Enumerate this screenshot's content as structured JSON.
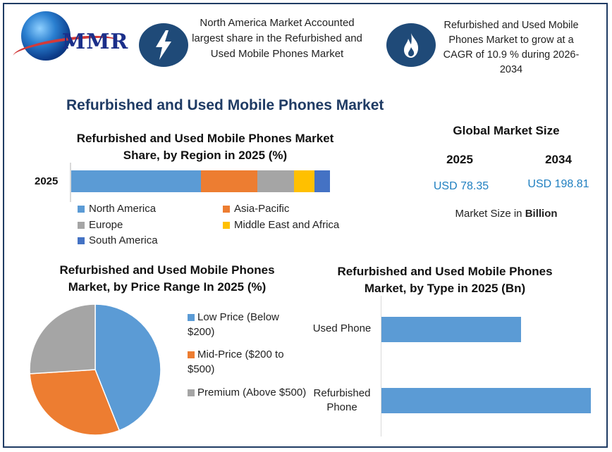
{
  "logo": {
    "text": "MMR"
  },
  "header": {
    "box1_text": "North America Market Accounted largest share in the Refurbished and Used Mobile Phones Market",
    "box1_icon": "lightning-icon",
    "box2_text": "Refurbished and Used Mobile Phones Market to grow at a CAGR of 10.9 % during 2026-2034",
    "box2_icon": "flame-icon"
  },
  "main_title": "Refurbished and Used Mobile Phones Market",
  "global_market": {
    "title": "Global Market Size",
    "year_a": "2025",
    "year_b": "2034",
    "value_a": "USD 78.35",
    "value_b": "USD 198.81",
    "note_prefix": "Market Size in ",
    "note_unit": "Billion"
  },
  "colors": {
    "blue": "#5b9bd5",
    "orange": "#ed7d31",
    "gray": "#a5a5a5",
    "yellow": "#ffc000",
    "darkblue": "#4472c4",
    "navy": "#1f3b64"
  },
  "chart_data": [
    {
      "type": "bar",
      "orientation": "horizontal-stacked",
      "title": "Refurbished and Used Mobile Phones Market Share, by Region in 2025 (%)",
      "categories": [
        "2025"
      ],
      "series": [
        {
          "name": "North America",
          "values": [
            50
          ],
          "color": "#5b9bd5"
        },
        {
          "name": "Asia-Pacific",
          "values": [
            22
          ],
          "color": "#ed7d31"
        },
        {
          "name": "Europe",
          "values": [
            14
          ],
          "color": "#a5a5a5"
        },
        {
          "name": "Middle East and Africa",
          "values": [
            8
          ],
          "color": "#ffc000"
        },
        {
          "name": "South America",
          "values": [
            6
          ],
          "color": "#4472c4"
        }
      ],
      "legend": "bottom"
    },
    {
      "type": "pie",
      "title": "Refurbished and Used Mobile Phones Market, by Price Range In 2025 (%)",
      "slices": [
        {
          "label": "Low Price (Below $200)",
          "value": 44,
          "color": "#5b9bd5"
        },
        {
          "label": "Mid-Price ($200 to $500)",
          "value": 30,
          "color": "#ed7d31"
        },
        {
          "label": "Premium (Above $500)",
          "value": 26,
          "color": "#a5a5a5"
        }
      ],
      "legend": "right"
    },
    {
      "type": "bar",
      "orientation": "horizontal",
      "title": "Refurbished and Used Mobile Phones Market, by Type in 2025 (Bn)",
      "categories": [
        "Used Phone",
        "Refurbished Phone"
      ],
      "values": [
        30,
        45
      ],
      "xlim": [
        0,
        50
      ],
      "color": "#5b9bd5"
    }
  ]
}
